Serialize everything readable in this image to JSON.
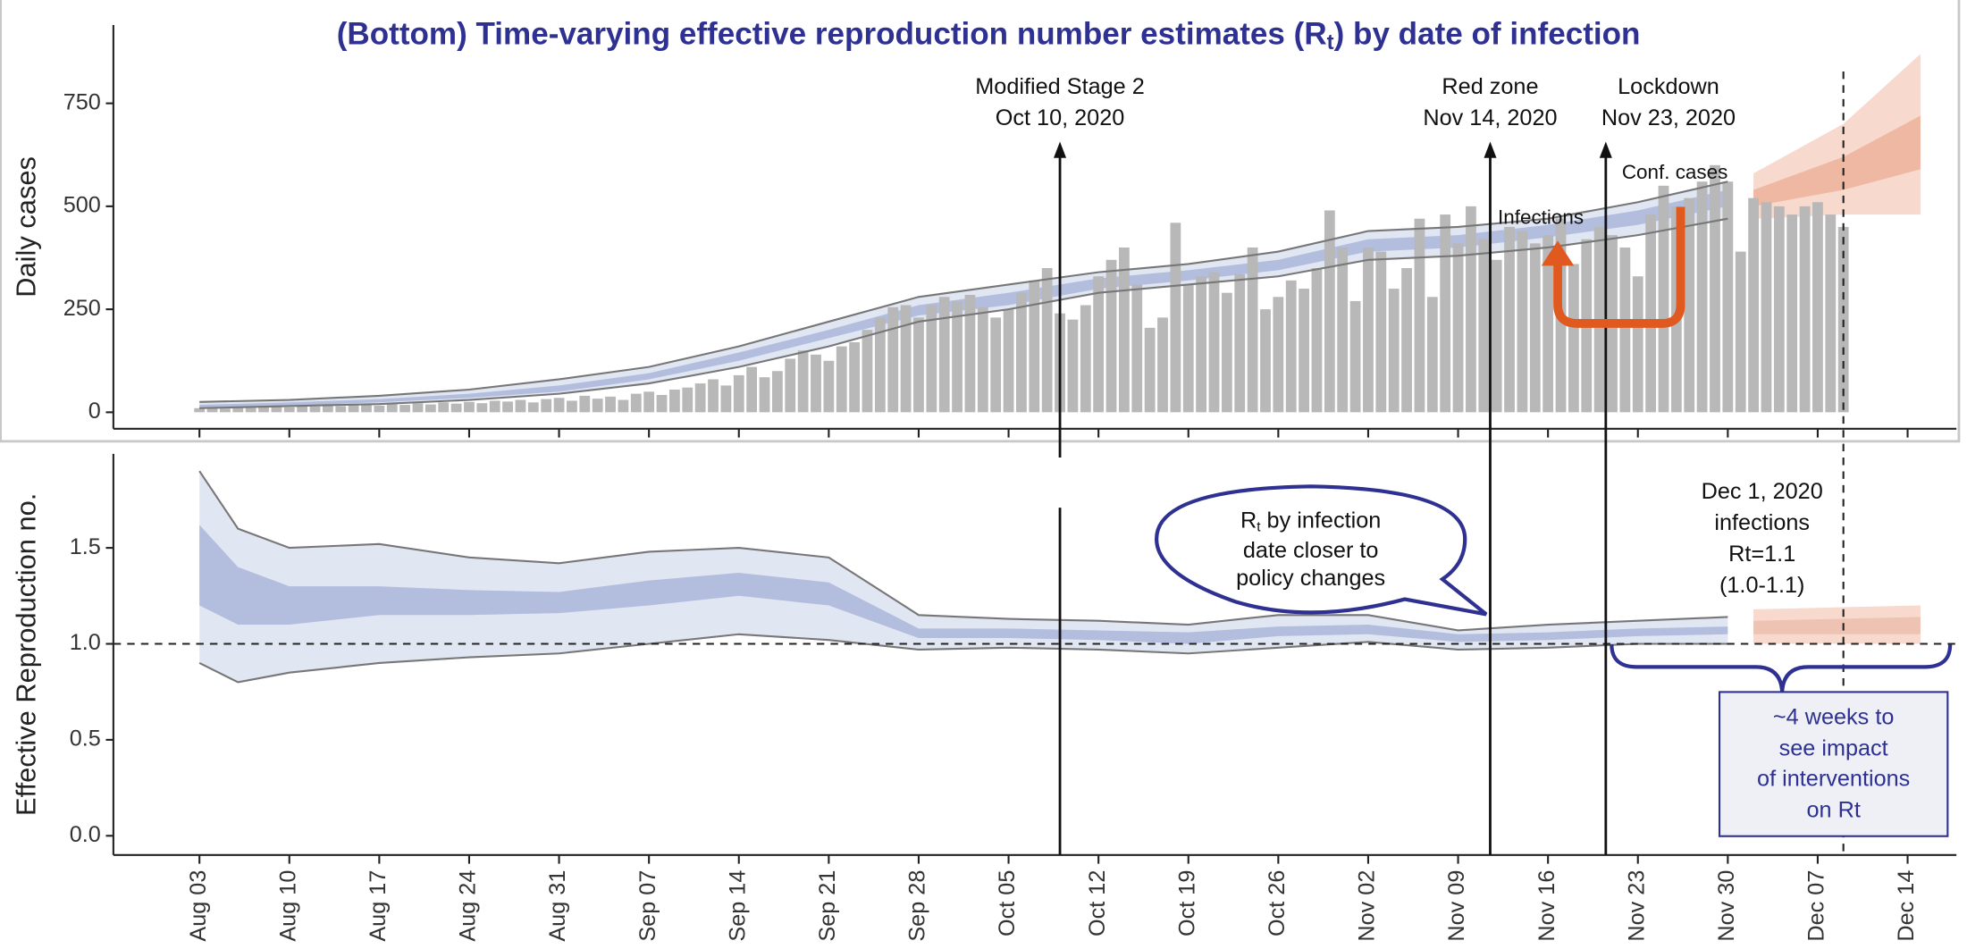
{
  "title": [
    "(Bottom) Time-varying effective reproduction number estimates (R",
    "t",
    ") by date of infection"
  ],
  "chart_data": [
    {
      "type": "bar",
      "ylabel": "Daily cases",
      "xlim": [
        -6.7,
        136.8
      ],
      "ylim": [
        -40,
        940
      ],
      "yticks": [
        0,
        250,
        500,
        750
      ],
      "xticks": [
        0,
        7,
        14,
        21,
        28,
        35,
        42,
        49,
        56,
        63,
        70,
        77,
        84,
        91,
        98,
        105,
        112,
        119,
        126,
        133
      ],
      "color": "#b8b8b8",
      "x": [
        0,
        1,
        2,
        3,
        4,
        5,
        6,
        7,
        8,
        9,
        10,
        11,
        12,
        13,
        14,
        15,
        16,
        17,
        18,
        19,
        20,
        21,
        22,
        23,
        24,
        25,
        26,
        27,
        28,
        29,
        30,
        31,
        32,
        33,
        34,
        35,
        36,
        37,
        38,
        39,
        40,
        41,
        42,
        43,
        44,
        45,
        46,
        47,
        48,
        49,
        50,
        51,
        52,
        53,
        54,
        55,
        56,
        57,
        58,
        59,
        60,
        61,
        62,
        63,
        64,
        65,
        66,
        67,
        68,
        69,
        70,
        71,
        72,
        73,
        74,
        75,
        76,
        77,
        78,
        79,
        80,
        81,
        82,
        83,
        84,
        85,
        86,
        87,
        88,
        89,
        90,
        91,
        92,
        93,
        94,
        95,
        96,
        97,
        98,
        99,
        100,
        101,
        102,
        103,
        104,
        105,
        106,
        107,
        108,
        109,
        110,
        111,
        112,
        113,
        114,
        115,
        116,
        117,
        118,
        119,
        120,
        121,
        122,
        123,
        124,
        125,
        126,
        127,
        128
      ],
      "values": [
        10,
        12,
        9,
        14,
        11,
        13,
        15,
        12,
        16,
        14,
        18,
        15,
        17,
        19,
        16,
        20,
        18,
        22,
        19,
        24,
        21,
        25,
        22,
        28,
        26,
        30,
        24,
        32,
        35,
        28,
        40,
        33,
        38,
        30,
        45,
        50,
        42,
        55,
        60,
        70,
        80,
        65,
        90,
        110,
        85,
        100,
        130,
        150,
        140,
        125,
        160,
        170,
        200,
        230,
        255,
        260,
        230,
        260,
        280,
        270,
        285,
        255,
        230,
        250,
        290,
        320,
        350,
        240,
        225,
        260,
        330,
        370,
        400,
        310,
        205,
        230,
        460,
        310,
        330,
        340,
        290,
        335,
        400,
        250,
        280,
        320,
        300,
        350,
        490,
        400,
        270,
        400,
        390,
        300,
        350,
        470,
        280,
        480,
        410,
        500,
        420,
        370,
        450,
        440,
        410,
        430,
        470,
        360,
        420,
        450,
        430,
        400,
        330,
        480,
        550,
        500,
        520,
        560,
        600,
        560,
        390,
        520,
        510,
        500,
        480,
        500,
        510,
        480,
        450
      ],
      "bands": [
        {
          "name": "Infections",
          "color": "#e1e6f3",
          "outline": true,
          "x": [
            0,
            7,
            14,
            21,
            28,
            35,
            42,
            49,
            56,
            63,
            70,
            77,
            84,
            91,
            98,
            105,
            112,
            119
          ],
          "lower": [
            10,
            15,
            20,
            30,
            45,
            70,
            110,
            160,
            220,
            250,
            290,
            310,
            330,
            370,
            380,
            400,
            430,
            470
          ],
          "upper": [
            25,
            30,
            40,
            55,
            80,
            110,
            160,
            220,
            280,
            310,
            340,
            360,
            390,
            440,
            450,
            470,
            510,
            560
          ]
        },
        {
          "name": "Conf. cases",
          "color": "#b3bddd",
          "outline": false,
          "x": [
            0,
            7,
            14,
            21,
            28,
            35,
            42,
            49,
            56,
            63,
            70,
            77,
            84,
            91,
            98,
            105,
            112,
            119
          ],
          "lower": [
            12,
            16,
            24,
            35,
            50,
            80,
            125,
            180,
            235,
            260,
            300,
            320,
            345,
            390,
            400,
            425,
            455,
            500
          ],
          "upper": [
            18,
            24,
            32,
            45,
            65,
            95,
            145,
            200,
            260,
            290,
            325,
            345,
            370,
            420,
            430,
            455,
            490,
            540
          ]
        },
        {
          "color": "#f7d9cd",
          "outline": false,
          "x": [
            121,
            128,
            134
          ],
          "lower": [
            470,
            480,
            480
          ],
          "upper": [
            580,
            700,
            870
          ]
        },
        {
          "color": "#efb8a3",
          "outline": false,
          "x": [
            121,
            128,
            134
          ],
          "lower": [
            500,
            540,
            590
          ],
          "upper": [
            540,
            620,
            720
          ]
        }
      ]
    },
    {
      "type": "line",
      "ylabel": "Effective Reproduction no.",
      "xlim": [
        -6.7,
        136.8
      ],
      "ylim": [
        -0.1,
        1.99
      ],
      "yticks": [
        {
          "value": 0,
          "label": "0.0"
        },
        0.5,
        {
          "value": 1,
          "label": "1.0"
        },
        1.5
      ],
      "xticks": [
        {
          "value": 0,
          "label": "Aug 03"
        },
        {
          "value": 7,
          "label": "Aug 10"
        },
        {
          "value": 14,
          "label": "Aug 17"
        },
        {
          "value": 21,
          "label": "Aug 24"
        },
        {
          "value": 28,
          "label": "Aug 31"
        },
        {
          "value": 35,
          "label": "Sep 07"
        },
        {
          "value": 42,
          "label": "Sep 14"
        },
        {
          "value": 49,
          "label": "Sep 21"
        },
        {
          "value": 56,
          "label": "Sep 28"
        },
        {
          "value": 63,
          "label": "Oct 05"
        },
        {
          "value": 70,
          "label": "Oct 12"
        },
        {
          "value": 77,
          "label": "Oct 19"
        },
        {
          "value": 84,
          "label": "Oct 26"
        },
        {
          "value": 91,
          "label": "Nov 02"
        },
        {
          "value": 98,
          "label": "Nov 09"
        },
        {
          "value": 105,
          "label": "Nov 16"
        },
        {
          "value": 112,
          "label": "Nov 23"
        },
        {
          "value": 119,
          "label": "Nov 30"
        },
        {
          "value": 126,
          "label": "Dec 07"
        },
        {
          "value": 133,
          "label": "Dec 14"
        }
      ],
      "hline": 1,
      "bands": [
        {
          "color": "#e1e6f3",
          "outline": true,
          "x": [
            0,
            3,
            7,
            14,
            21,
            28,
            35,
            42,
            49,
            56,
            63,
            70,
            77,
            84,
            91,
            98,
            105,
            112,
            119
          ],
          "lower": [
            0.9,
            0.8,
            0.85,
            0.9,
            0.93,
            0.95,
            1.0,
            1.05,
            1.02,
            0.97,
            0.98,
            0.97,
            0.95,
            0.98,
            1.01,
            0.97,
            0.98,
            1.0,
            1.0
          ],
          "upper": [
            1.9,
            1.6,
            1.5,
            1.52,
            1.45,
            1.42,
            1.48,
            1.5,
            1.45,
            1.15,
            1.13,
            1.12,
            1.1,
            1.15,
            1.15,
            1.07,
            1.1,
            1.12,
            1.14
          ]
        },
        {
          "color": "#b3bddd",
          "outline": false,
          "x": [
            0,
            3,
            7,
            14,
            21,
            28,
            35,
            42,
            49,
            56,
            63,
            70,
            77,
            84,
            91,
            98,
            105,
            112,
            119
          ],
          "lower": [
            1.2,
            1.1,
            1.1,
            1.15,
            1.15,
            1.16,
            1.2,
            1.25,
            1.2,
            1.03,
            1.03,
            1.02,
            1.0,
            1.04,
            1.05,
            1.01,
            1.02,
            1.04,
            1.05
          ],
          "upper": [
            1.62,
            1.4,
            1.3,
            1.3,
            1.28,
            1.27,
            1.33,
            1.37,
            1.32,
            1.08,
            1.08,
            1.07,
            1.06,
            1.09,
            1.1,
            1.05,
            1.06,
            1.08,
            1.09
          ]
        },
        {
          "color": "#f7d9cd",
          "outline": false,
          "x": [
            121,
            134
          ],
          "lower": [
            1.0,
            1.0
          ],
          "upper": [
            1.18,
            1.2
          ]
        },
        {
          "color": "#efc3b3",
          "outline": false,
          "x": [
            121,
            134
          ],
          "lower": [
            1.05,
            1.05
          ],
          "upper": [
            1.12,
            1.14
          ]
        }
      ]
    }
  ],
  "events": [
    {
      "label": [
        "Modified Stage 2",
        "Oct 10, 2020"
      ],
      "x": 67
    },
    {
      "label": [
        "Red zone",
        "Nov 14, 2020"
      ],
      "x": 100.5
    },
    {
      "label": [
        "Lockdown",
        "Nov 23, 2020"
      ],
      "x": 109.5
    }
  ],
  "dashed_x": 128,
  "dec1_note": [
    "Dec 1, 2020",
    "infections",
    "Rt=1.1",
    "(1.0-1.1)"
  ],
  "bubble": [
    "R",
    "t",
    " by infection",
    "date closer to",
    "policy changes"
  ],
  "box": [
    "~4 weeks to",
    "see impact",
    "of interventions",
    "on Rt"
  ]
}
